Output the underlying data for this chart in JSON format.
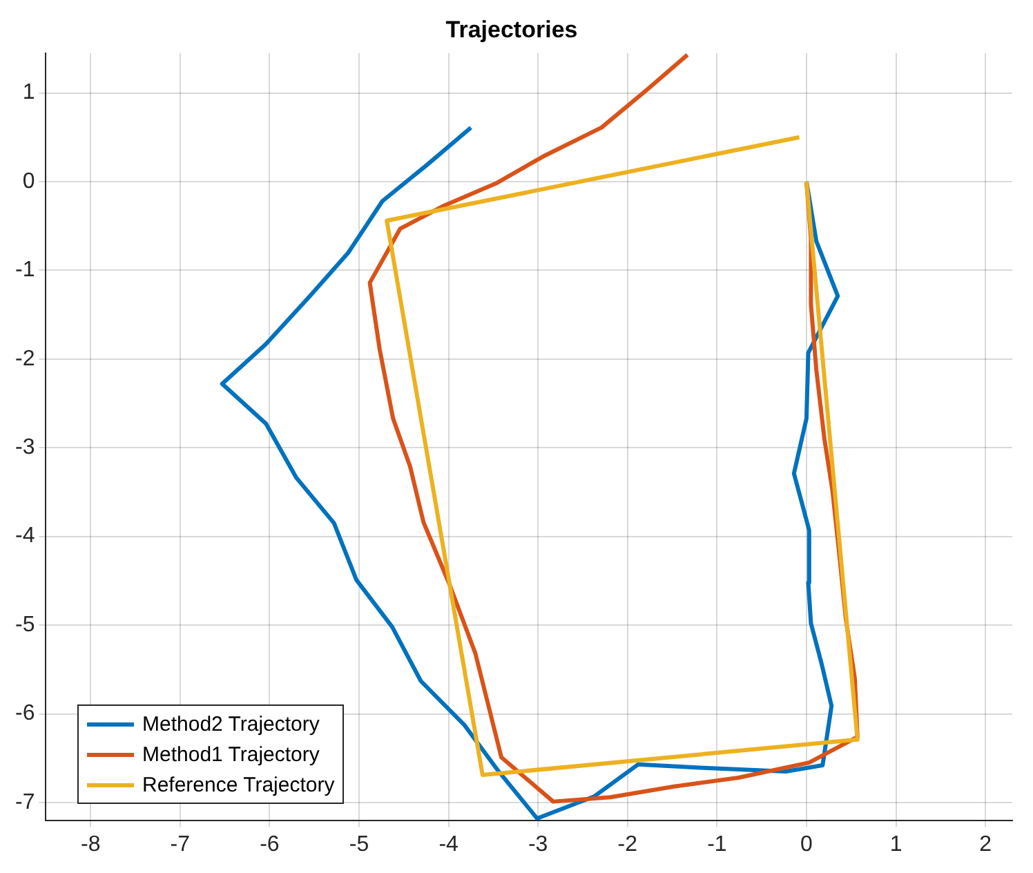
{
  "chart_data": {
    "type": "line",
    "title": "Trajectories",
    "xlim": [
      -8.5,
      2.3
    ],
    "ylim": [
      -7.2,
      1.45
    ],
    "xticks": [
      -8,
      -7,
      -6,
      -5,
      -4,
      -3,
      -2,
      -1,
      0,
      1,
      2
    ],
    "yticks": [
      -7,
      -6,
      -5,
      -4,
      -3,
      -2,
      -1,
      0,
      1
    ],
    "grid": true,
    "legend": "bottom left",
    "series": [
      {
        "name": "Method2 Trajectory",
        "color": "#0072bd",
        "x": [
          -3.75,
          -4.24,
          -4.74,
          -5.12,
          -5.55,
          -6.04,
          -6.53,
          -6.04,
          -5.7,
          -5.28,
          -5.03,
          -4.63,
          -4.31,
          -3.82,
          -3.44,
          -3.01,
          -2.37,
          -1.88,
          -1.15,
          -0.23,
          0.18,
          0.28,
          0.17,
          0.05,
          0.02,
          0.03,
          -0.14,
          0,
          0.02,
          0.35,
          0.11,
          0
        ],
        "values": [
          0.61,
          0.19,
          -0.22,
          -0.8,
          -1.29,
          -1.83,
          -2.28,
          -2.73,
          -3.34,
          -3.85,
          -4.49,
          -5.02,
          -5.63,
          -6.13,
          -6.65,
          -7.18,
          -6.93,
          -6.57,
          -6.61,
          -6.65,
          -6.58,
          -5.91,
          -5.44,
          -4.98,
          -4.52,
          -3.93,
          -3.29,
          -2.67,
          -1.93,
          -1.29,
          -0.67,
          0
        ]
      },
      {
        "name": "Method1 Trajectory",
        "color": "#d95319",
        "x": [
          -1.33,
          -1.79,
          -2.29,
          -2.95,
          -3.47,
          -4.05,
          -4.54,
          -4.88,
          -4.77,
          -4.62,
          -4.43,
          -4.28,
          -3.99,
          -3.7,
          -3.41,
          -2.83,
          -2.19,
          -1.48,
          -0.76,
          0.03,
          0.57,
          0.54,
          0.44,
          0.37,
          0.29,
          0.2,
          0.11,
          0.05,
          0.05,
          0
        ],
        "values": [
          1.43,
          1.03,
          0.61,
          0.28,
          -0.02,
          -0.27,
          -0.53,
          -1.14,
          -1.89,
          -2.67,
          -3.21,
          -3.84,
          -4.54,
          -5.32,
          -6.49,
          -6.99,
          -6.94,
          -6.82,
          -6.72,
          -6.55,
          -6.26,
          -5.6,
          -4.93,
          -4.23,
          -3.48,
          -2.9,
          -2.12,
          -1.39,
          -0.64,
          0
        ]
      },
      {
        "name": "Reference Trajectory",
        "color": "#edb120",
        "x": [
          -0.08,
          -4.69,
          -3.62,
          0.57,
          0
        ],
        "values": [
          0.5,
          -0.44,
          -6.69,
          -6.29,
          0
        ]
      }
    ]
  }
}
